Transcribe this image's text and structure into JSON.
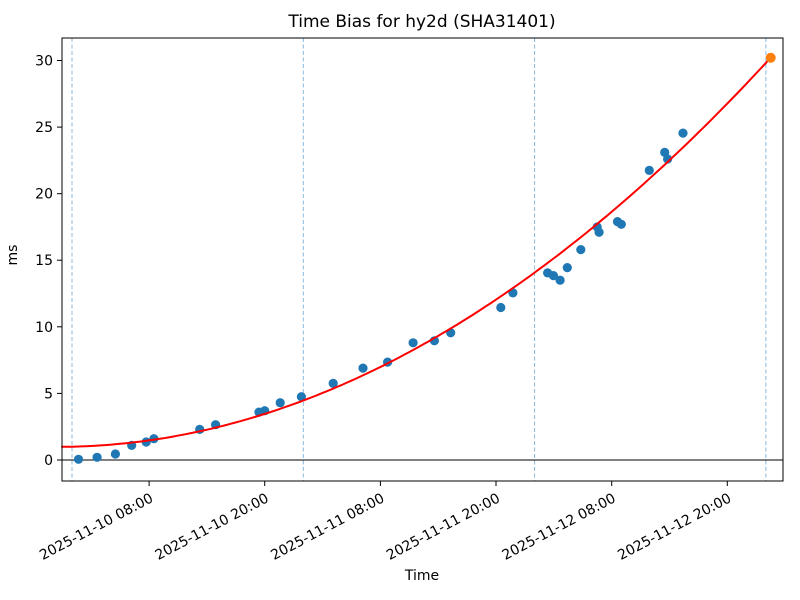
{
  "chart_data": {
    "type": "scatter",
    "title": "Time Bias for hy2d (SHA31401)",
    "xlabel": "Time",
    "ylabel": "ms",
    "x_tick_labels": [
      "2025-11-10 08:00",
      "2025-11-10 20:00",
      "2025-11-11 08:00",
      "2025-11-11 20:00",
      "2025-11-12 08:00",
      "2025-11-12 20:00"
    ],
    "x_tick_hours_since_2025_11_10": [
      8,
      20,
      32,
      44,
      56,
      68
    ],
    "y_ticks": [
      0,
      5,
      10,
      15,
      20,
      25,
      30
    ],
    "y_tick_labels": [
      "0",
      "5",
      "10",
      "15",
      "20",
      "25",
      "30"
    ],
    "ylim": [
      -1.6,
      31.7
    ],
    "xlim_hours_since_2025_11_10": [
      -1.04,
      73.8
    ],
    "grid": "vertical dashed lines at day boundaries only",
    "zero_line": true,
    "legend": "none",
    "colors": {
      "scatter": "#1f77b4",
      "prediction": "#ff7f0e",
      "fit_line": "#ff0000",
      "day_line": "#7fb2d9",
      "axis": "#000000"
    },
    "day_gridlines": [
      {
        "time": "2025-11-10 00:00",
        "t": 0
      },
      {
        "time": "2025-11-11 00:00",
        "t": 24
      },
      {
        "time": "2025-11-12 00:00",
        "t": 48
      },
      {
        "time": "2025-11-13 00:00",
        "t": 72
      }
    ],
    "series": [
      {
        "name": "observed-bias",
        "marker": "circle",
        "color": "#1f77b4",
        "points": [
          {
            "time": "2025-11-10 00:40",
            "t": 0.67,
            "ms": 0.05
          },
          {
            "time": "2025-11-10 02:35",
            "t": 2.6,
            "ms": 0.2
          },
          {
            "time": "2025-11-10 04:30",
            "t": 4.5,
            "ms": 0.45
          },
          {
            "time": "2025-11-10 06:10",
            "t": 6.2,
            "ms": 1.1
          },
          {
            "time": "2025-11-10 07:40",
            "t": 7.7,
            "ms": 1.35
          },
          {
            "time": "2025-11-10 08:30",
            "t": 8.5,
            "ms": 1.6
          },
          {
            "time": "2025-11-10 13:15",
            "t": 13.25,
            "ms": 2.3
          },
          {
            "time": "2025-11-10 14:55",
            "t": 14.9,
            "ms": 2.65
          },
          {
            "time": "2025-11-10 19:25",
            "t": 19.4,
            "ms": 3.6
          },
          {
            "time": "2025-11-10 20:00",
            "t": 20.0,
            "ms": 3.7
          },
          {
            "time": "2025-11-10 21:35",
            "t": 21.6,
            "ms": 4.3
          },
          {
            "time": "2025-11-10 23:50",
            "t": 23.8,
            "ms": 4.75
          },
          {
            "time": "2025-11-11 03:05",
            "t": 27.1,
            "ms": 5.75
          },
          {
            "time": "2025-11-11 06:10",
            "t": 30.2,
            "ms": 6.9
          },
          {
            "time": "2025-11-11 08:45",
            "t": 32.75,
            "ms": 7.35
          },
          {
            "time": "2025-11-11 11:25",
            "t": 35.4,
            "ms": 8.8
          },
          {
            "time": "2025-11-11 13:35",
            "t": 37.6,
            "ms": 8.95
          },
          {
            "time": "2025-11-11 15:20",
            "t": 39.3,
            "ms": 9.55
          },
          {
            "time": "2025-11-11 20:30",
            "t": 44.5,
            "ms": 11.45
          },
          {
            "time": "2025-11-11 21:45",
            "t": 45.75,
            "ms": 12.55
          },
          {
            "time": "2025-11-12 01:20",
            "t": 49.35,
            "ms": 14.05
          },
          {
            "time": "2025-11-12 01:55",
            "t": 49.95,
            "ms": 13.85
          },
          {
            "time": "2025-11-12 02:40",
            "t": 50.65,
            "ms": 13.5
          },
          {
            "time": "2025-11-12 03:25",
            "t": 51.4,
            "ms": 14.45
          },
          {
            "time": "2025-11-12 04:50",
            "t": 52.8,
            "ms": 15.8
          },
          {
            "time": "2025-11-12 06:30",
            "t": 54.5,
            "ms": 17.5
          },
          {
            "time": "2025-11-12 06:40",
            "t": 54.7,
            "ms": 17.1
          },
          {
            "time": "2025-11-12 08:35",
            "t": 56.6,
            "ms": 17.9
          },
          {
            "time": "2025-11-12 09:00",
            "t": 57.0,
            "ms": 17.7
          },
          {
            "time": "2025-11-12 11:55",
            "t": 59.9,
            "ms": 21.75
          },
          {
            "time": "2025-11-12 13:30",
            "t": 61.5,
            "ms": 23.1
          },
          {
            "time": "2025-11-12 13:50",
            "t": 61.8,
            "ms": 22.6
          },
          {
            "time": "2025-11-12 15:25",
            "t": 63.4,
            "ms": 24.55
          }
        ]
      },
      {
        "name": "prediction-point",
        "marker": "circle",
        "color": "#ff7f0e",
        "points": [
          {
            "time": "2025-11-13 00:30",
            "t": 72.5,
            "ms": 30.2
          }
        ]
      }
    ],
    "fit_curve": {
      "name": "fit",
      "color": "#ff0000",
      "model": "ms = a + b*t + c*t^2, t = hours since 2025-11-10 00:00",
      "a": 1.0,
      "b": 0.0165,
      "c": 0.00533,
      "t_range": [
        -1.04,
        72.5
      ]
    }
  }
}
